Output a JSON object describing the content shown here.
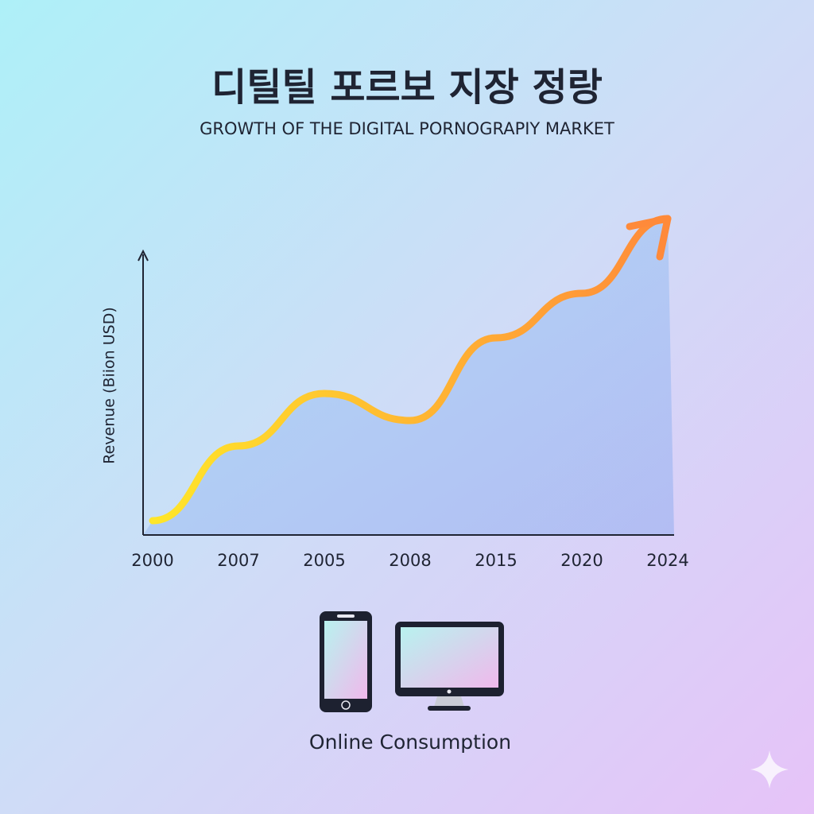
{
  "chart_data": {
    "type": "line",
    "title": "디틸틸 포르보 지장 정랑",
    "subtitle": "GROWTH OF THE DIGITAL PORNOGRAPIY MARKET",
    "y_label": "Revenue (Biion USD)",
    "categories": [
      "2000",
      "2007",
      "2005",
      "2008",
      "2015",
      "2020",
      "2024"
    ],
    "values": [
      4.5,
      28,
      44.5,
      36,
      62,
      76,
      99.5
    ],
    "ylim": [
      0,
      100
    ],
    "line_colors": [
      "#ffe62a",
      "#ff8a3a"
    ],
    "area_color": "#a9b8f2",
    "footer": "Online Consumption"
  }
}
